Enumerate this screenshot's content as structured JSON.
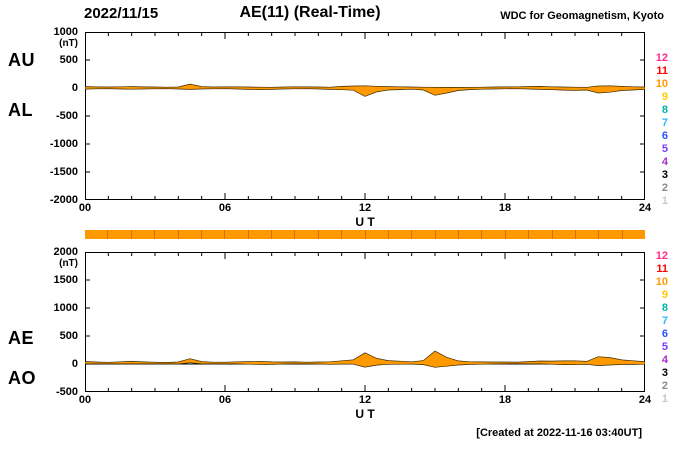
{
  "header": {
    "date": "2022/11/15",
    "title": "AE(11) (Real-Time)",
    "source": "WDC for Geomagnetism, Kyoto"
  },
  "footer": {
    "created_note": "[Created at 2022-11-16 03:40UT]"
  },
  "axes": {
    "x_label": "U T",
    "x_ticks": [
      "00",
      "06",
      "12",
      "18",
      "24"
    ],
    "x_tick_hours": [
      0,
      6,
      12,
      18,
      24
    ]
  },
  "panels": {
    "top": {
      "left_labels": [
        "AU",
        "AL"
      ],
      "unit": "(nT)",
      "y_ticks": [
        "1000",
        "500",
        "0",
        "-500",
        "-1000",
        "-1500",
        "-2000"
      ]
    },
    "bottom": {
      "left_labels": [
        "AE",
        "AO"
      ],
      "unit": "(nT)",
      "y_ticks": [
        "2000",
        "1500",
        "1000",
        "500",
        "0",
        "-500"
      ]
    }
  },
  "station_scale": {
    "labels": [
      "12",
      "11",
      "10",
      "9",
      "8",
      "7",
      "6",
      "5",
      "4",
      "3",
      "2",
      "1"
    ],
    "colors": [
      "#ff2d8d",
      "#ff0000",
      "#ff9900",
      "#ffcc00",
      "#00b3a6",
      "#2fb4ff",
      "#2a52ff",
      "#7a3cff",
      "#a82fd0",
      "#000000",
      "#8a8a8a",
      "#c8c8c8"
    ]
  },
  "colors": {
    "trace_fill": "#ff9900",
    "trace_edge": "#3a2a00",
    "bar": "#ff9900"
  },
  "chart_data": [
    {
      "type": "area",
      "title": "AU / AL auroral electrojet indices (top panel)",
      "xlabel": "U T",
      "ylabel": "(nT)",
      "xlim": [
        0,
        24
      ],
      "ylim": [
        -2000,
        1000
      ],
      "x": [
        0,
        0.5,
        1,
        1.5,
        2,
        2.5,
        3,
        3.5,
        4,
        4.5,
        5,
        5.5,
        6,
        6.5,
        7,
        7.5,
        8,
        8.5,
        9,
        9.5,
        10,
        10.5,
        11,
        11.5,
        12,
        12.5,
        13,
        13.5,
        14,
        14.5,
        15,
        15.5,
        16,
        16.5,
        17,
        17.5,
        18,
        18.5,
        19,
        19.5,
        20,
        20.5,
        21,
        21.5,
        22,
        22.5,
        23,
        23.5,
        24
      ],
      "series": [
        {
          "name": "AU",
          "values": [
            25,
            20,
            18,
            22,
            25,
            20,
            18,
            15,
            18,
            70,
            25,
            18,
            20,
            22,
            18,
            15,
            12,
            18,
            22,
            20,
            18,
            15,
            28,
            35,
            40,
            30,
            25,
            22,
            18,
            15,
            12,
            10,
            10,
            12,
            15,
            18,
            20,
            22,
            25,
            28,
            22,
            18,
            15,
            12,
            35,
            40,
            28,
            22,
            18
          ]
        },
        {
          "name": "AL",
          "values": [
            -20,
            -15,
            -12,
            -18,
            -22,
            -18,
            -15,
            -12,
            -18,
            -25,
            -18,
            -15,
            -12,
            -18,
            -25,
            -30,
            -25,
            -18,
            -15,
            -12,
            -18,
            -25,
            -30,
            -40,
            -150,
            -70,
            -35,
            -28,
            -22,
            -35,
            -130,
            -90,
            -45,
            -28,
            -22,
            -18,
            -15,
            -12,
            -18,
            -25,
            -30,
            -38,
            -42,
            -35,
            -90,
            -75,
            -45,
            -35,
            -25
          ]
        }
      ]
    },
    {
      "type": "area",
      "title": "AE / AO auroral electrojet indices (bottom panel)",
      "xlabel": "U T",
      "ylabel": "(nT)",
      "xlim": [
        0,
        24
      ],
      "ylim": [
        -500,
        2000
      ],
      "x": [
        0,
        0.5,
        1,
        1.5,
        2,
        2.5,
        3,
        3.5,
        4,
        4.5,
        5,
        5.5,
        6,
        6.5,
        7,
        7.5,
        8,
        8.5,
        9,
        9.5,
        10,
        10.5,
        11,
        11.5,
        12,
        12.5,
        13,
        13.5,
        14,
        14.5,
        15,
        15.5,
        16,
        16.5,
        17,
        17.5,
        18,
        18.5,
        19,
        19.5,
        20,
        20.5,
        21,
        21.5,
        22,
        22.5,
        23,
        23.5,
        24
      ],
      "series": [
        {
          "name": "AE",
          "values": [
            45,
            35,
            30,
            40,
            47,
            38,
            33,
            27,
            36,
            95,
            43,
            33,
            32,
            40,
            43,
            45,
            37,
            36,
            37,
            32,
            36,
            40,
            58,
            75,
            200,
            100,
            60,
            50,
            40,
            60,
            230,
            120,
            55,
            40,
            37,
            36,
            35,
            34,
            43,
            53,
            52,
            56,
            57,
            47,
            130,
            115,
            73,
            57,
            43
          ]
        },
        {
          "name": "AO",
          "values": [
            3,
            3,
            3,
            2,
            2,
            1,
            2,
            2,
            0,
            23,
            4,
            2,
            4,
            2,
            -4,
            -8,
            -7,
            0,
            4,
            4,
            0,
            -5,
            -1,
            -3,
            -55,
            -20,
            -5,
            -3,
            -2,
            -10,
            -59,
            -40,
            -18,
            -8,
            -4,
            0,
            3,
            5,
            4,
            2,
            -4,
            -10,
            -9,
            -6,
            -28,
            -18,
            -9,
            -7,
            -4
          ]
        }
      ]
    }
  ]
}
